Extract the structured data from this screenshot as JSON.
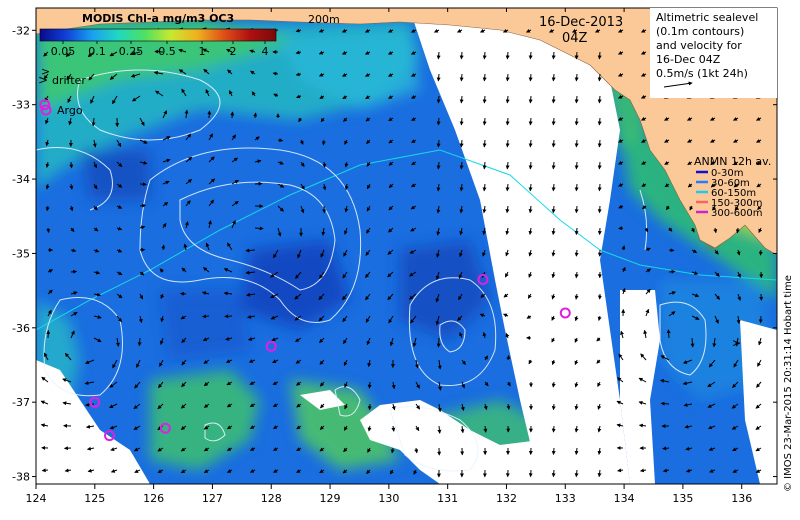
{
  "map": {
    "colorbar_title": "MODIS Chl-a mg/m3 OC3",
    "colorbar_ticks": [
      "0.05",
      "0.1",
      "0.25",
      "0.5",
      "1",
      "2",
      "4"
    ],
    "colorbar_colors": [
      "#0a0a8c",
      "#1040d8",
      "#1aa0f0",
      "#20d8c0",
      "#50e060",
      "#c8e830",
      "#f0b020",
      "#e05018",
      "#b01010",
      "#7a0a0a"
    ],
    "date": "16-Dec-2013",
    "time": "04Z",
    "isobath_label": "200m",
    "altimetry_legend": {
      "line1": "Altimetric sealevel",
      "line2": "(0.1m contours)",
      "line3": "and velocity for",
      "line4": "16-Dec 04Z",
      "line5": "0.5m/s (1kt 24h)"
    },
    "legend_drifter": "drifter",
    "legend_argo": "Argo",
    "anmn": {
      "title": "ANMN 12h av.",
      "items": [
        {
          "label": "0-30m",
          "color": "#1010d0"
        },
        {
          "label": "30-60m",
          "color": "#2080ff"
        },
        {
          "label": "60-150m",
          "color": "#20c8f0"
        },
        {
          "label": "150-300m",
          "color": "#ff6060"
        },
        {
          "label": "300-600m",
          "color": "#d020d0"
        }
      ]
    },
    "credit": "© IMOS 23-Mar-2015 20:31:14 Hobart time",
    "x_ticks": [
      "124",
      "125",
      "126",
      "127",
      "128",
      "129",
      "130",
      "131",
      "132",
      "133",
      "134",
      "135",
      "136"
    ],
    "y_ticks": [
      "-32",
      "-33",
      "-34",
      "-35",
      "-36",
      "-37",
      "-38"
    ],
    "lon_range": [
      124,
      136.6
    ],
    "lat_range": [
      -38.1,
      -31.7
    ],
    "argo_floats": [
      [
        131.6,
        -35.35
      ],
      [
        133.0,
        -35.8
      ],
      [
        128.0,
        -36.25
      ],
      [
        125.0,
        -37.0
      ],
      [
        126.2,
        -37.35
      ],
      [
        125.25,
        -37.45
      ],
      [
        124.15,
        -33.0
      ]
    ],
    "drifters": [
      [
        124.15,
        -32.55
      ],
      [
        135.9,
        -36.2
      ]
    ],
    "colors": {
      "land": "#fbc998",
      "cloud": "#ffffff",
      "sst_blue": "#1a6ee0",
      "contour": "#e8f4ff",
      "isobath": "#18d8e8"
    }
  }
}
